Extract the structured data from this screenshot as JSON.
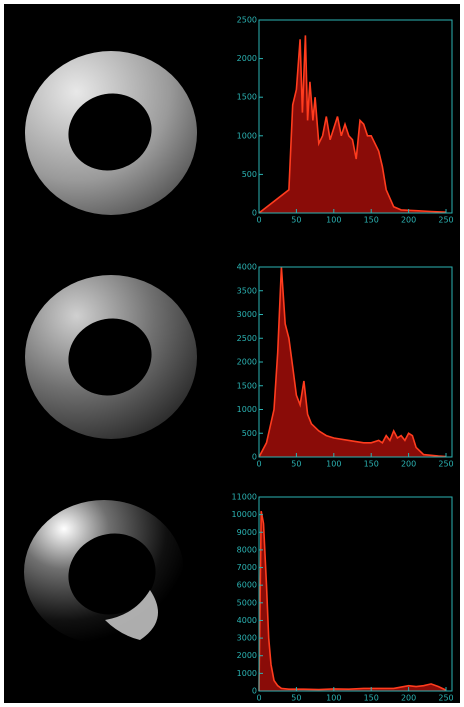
{
  "chart_data": [
    {
      "type": "area",
      "color": "#ff3c1e",
      "fill": "#8a0c08",
      "x": [
        0,
        40,
        45,
        50,
        55,
        58,
        62,
        65,
        68,
        72,
        75,
        80,
        85,
        90,
        95,
        100,
        105,
        110,
        115,
        120,
        125,
        130,
        135,
        140,
        145,
        150,
        160,
        165,
        170,
        180,
        190,
        210,
        230,
        250
      ],
      "values": [
        0,
        300,
        1400,
        1600,
        2250,
        1300,
        2300,
        1200,
        1700,
        1200,
        1500,
        900,
        1000,
        1250,
        950,
        1100,
        1250,
        1000,
        1150,
        1000,
        950,
        700,
        1200,
        1150,
        1000,
        1000,
        800,
        600,
        300,
        80,
        40,
        30,
        20,
        10
      ],
      "xlim": [
        0,
        258
      ],
      "xticks": [
        0,
        50,
        100,
        150,
        200,
        250
      ],
      "ylim": [
        0,
        2500
      ],
      "yticks": [
        0,
        500,
        1000,
        1500,
        2000,
        2500
      ]
    },
    {
      "type": "area",
      "color": "#ff3c1e",
      "fill": "#8a0c08",
      "x": [
        0,
        10,
        20,
        25,
        30,
        35,
        40,
        45,
        50,
        55,
        60,
        65,
        70,
        80,
        90,
        100,
        120,
        140,
        150,
        160,
        165,
        170,
        175,
        180,
        185,
        190,
        195,
        200,
        205,
        210,
        220,
        240,
        250
      ],
      "values": [
        0,
        300,
        1000,
        2200,
        4000,
        2800,
        2500,
        1900,
        1300,
        1100,
        1600,
        900,
        700,
        550,
        450,
        400,
        350,
        300,
        300,
        350,
        300,
        450,
        350,
        550,
        400,
        450,
        350,
        500,
        450,
        200,
        50,
        20,
        10
      ],
      "xlim": [
        0,
        258
      ],
      "xticks": [
        0,
        50,
        100,
        150,
        200,
        250
      ],
      "ylim": [
        0,
        4000
      ],
      "yticks": [
        0,
        500,
        1000,
        1500,
        2000,
        2500,
        3000,
        3500,
        4000
      ]
    },
    {
      "type": "area",
      "color": "#ff3c1e",
      "fill": "#8a0c08",
      "x": [
        0,
        3,
        6,
        10,
        13,
        16,
        20,
        25,
        30,
        40,
        60,
        80,
        100,
        120,
        140,
        160,
        180,
        200,
        210,
        220,
        230,
        240,
        250
      ],
      "values": [
        0,
        10200,
        9500,
        6000,
        3000,
        1500,
        600,
        300,
        150,
        100,
        100,
        80,
        120,
        100,
        150,
        150,
        150,
        300,
        250,
        300,
        400,
        250,
        50
      ],
      "xlim": [
        0,
        258
      ],
      "xticks": [
        0,
        50,
        100,
        150,
        200,
        250
      ],
      "ylim": [
        0,
        11000
      ],
      "yticks": [
        0,
        1000,
        2000,
        3000,
        4000,
        5000,
        6000,
        7000,
        8000,
        9000,
        10000,
        11000
      ]
    }
  ]
}
